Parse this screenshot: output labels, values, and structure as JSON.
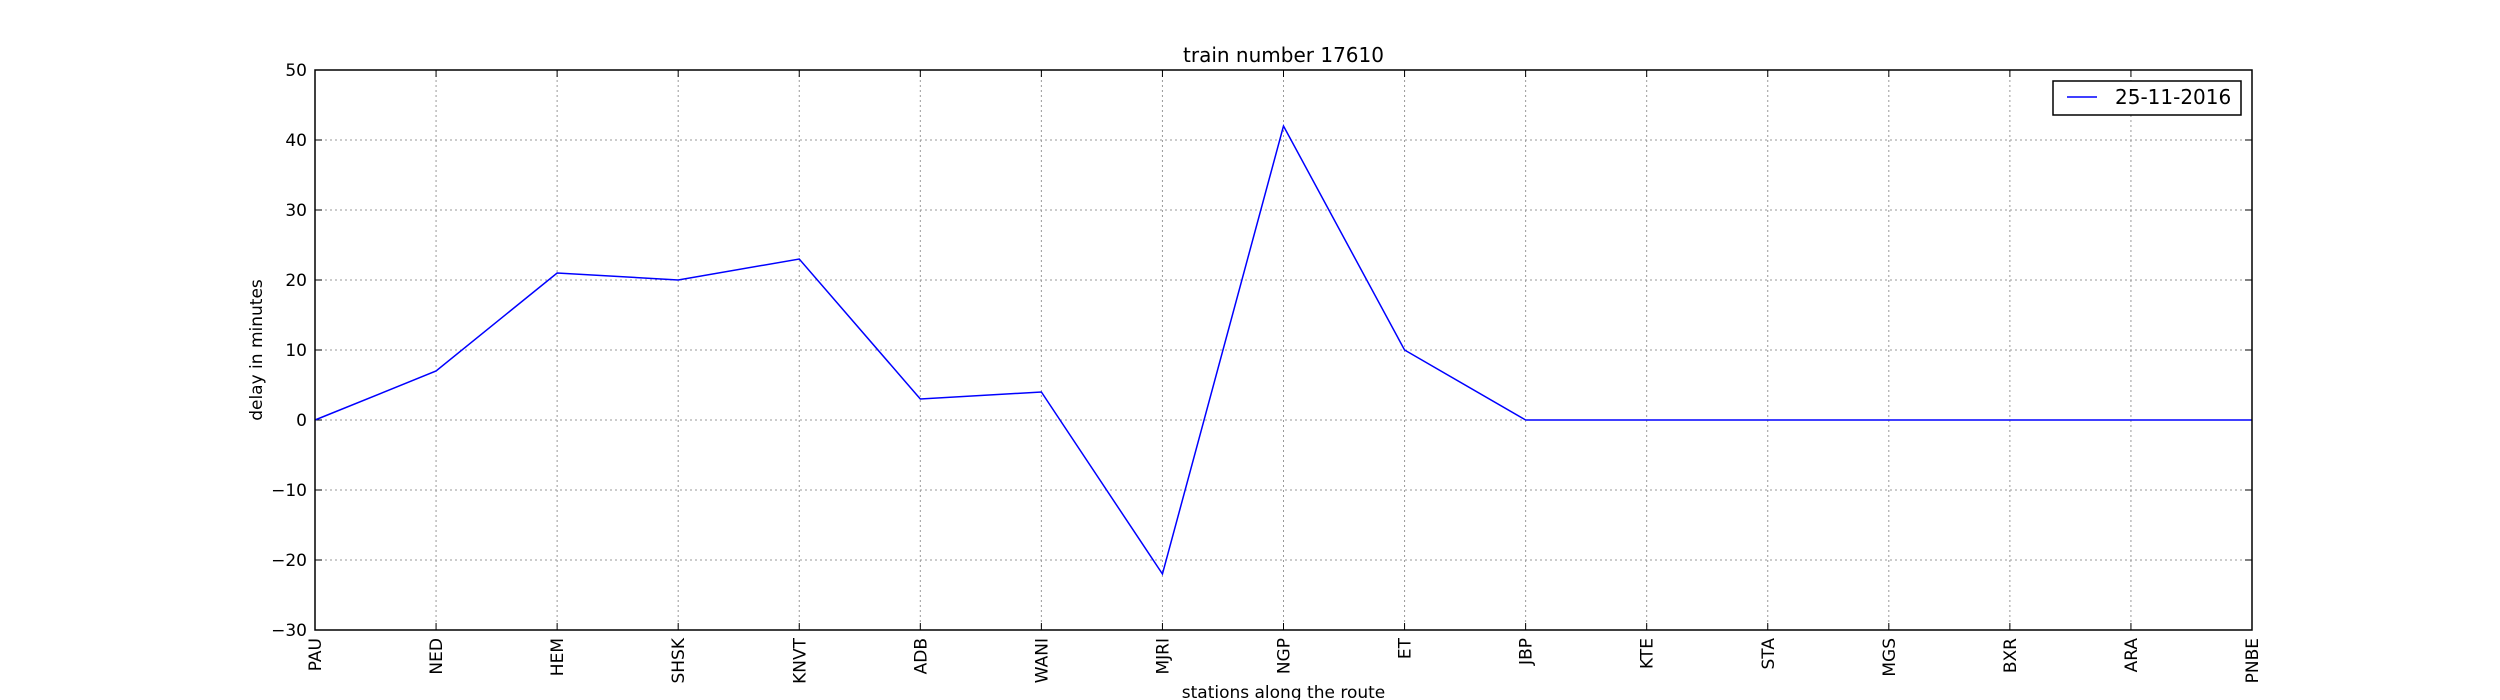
{
  "chart_data": {
    "type": "line",
    "title": "train number 17610",
    "xlabel": "stations along the route",
    "ylabel": "delay in minutes",
    "categories": [
      "PAU",
      "NED",
      "HEM",
      "SHSK",
      "KNVT",
      "ADB",
      "WANI",
      "MJRI",
      "NGP",
      "ET",
      "JBP",
      "KTE",
      "STA",
      "MGS",
      "BXR",
      "ARA",
      "PNBE"
    ],
    "series": [
      {
        "name": "25-11-2016",
        "color": "#0000ff",
        "values": [
          0,
          7,
          21,
          20,
          23,
          3,
          4,
          -22,
          42,
          10,
          0,
          0,
          0,
          0,
          0,
          0,
          0
        ]
      }
    ],
    "ylim": [
      -30,
      50
    ],
    "yticks": [
      -30,
      -20,
      -10,
      0,
      10,
      20,
      30,
      40,
      50
    ],
    "ytick_labels": [
      "−30",
      "−20",
      "−10",
      "0",
      "10",
      "20",
      "30",
      "40",
      "50"
    ],
    "grid": true,
    "legend_position": "top-right"
  }
}
